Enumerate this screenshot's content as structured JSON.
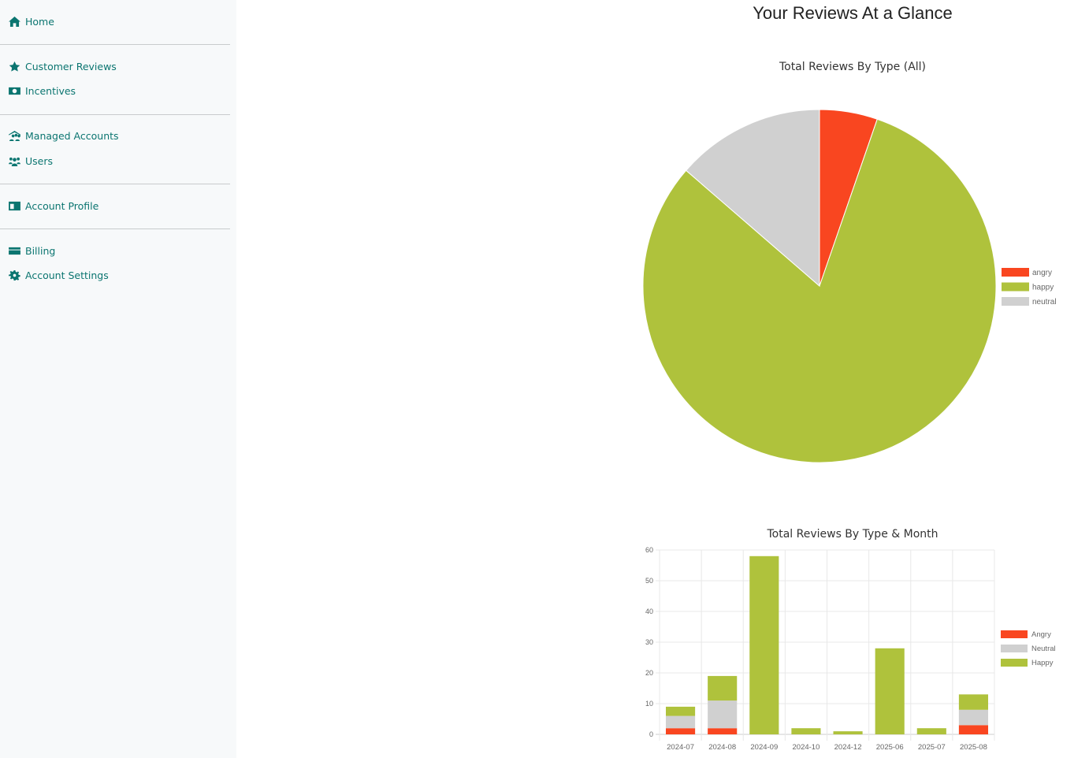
{
  "sidebar": {
    "items": [
      {
        "label": "Home",
        "icon": "home-icon"
      },
      {
        "label": "Customer Reviews",
        "icon": "star-icon"
      },
      {
        "label": "Incentives",
        "icon": "money-icon"
      },
      {
        "label": "Managed Accounts",
        "icon": "managed-accounts-icon"
      },
      {
        "label": "Users",
        "icon": "users-icon"
      },
      {
        "label": "Account Profile",
        "icon": "id-card-icon"
      },
      {
        "label": "Billing",
        "icon": "credit-card-icon"
      },
      {
        "label": "Account Settings",
        "icon": "gear-icon"
      }
    ],
    "accent": "#0b7570"
  },
  "page": {
    "title": "Your Reviews At a Glance"
  },
  "chart_data": [
    {
      "type": "pie",
      "title": "Total Reviews By Type (All)",
      "labels": [
        "angry",
        "happy",
        "neutral"
      ],
      "values": [
        7,
        107,
        18
      ],
      "colors": [
        "#f94620",
        "#afc23c",
        "#d0d0d0"
      ],
      "legend": "right"
    },
    {
      "type": "bar",
      "stacked": true,
      "title": "Total Reviews By Type & Month",
      "categories": [
        "2024-07",
        "2024-08",
        "2024-09",
        "2024-10",
        "2024-12",
        "2025-06",
        "2025-07",
        "2025-08"
      ],
      "series": [
        {
          "name": "Angry",
          "values": [
            2,
            2,
            0,
            0,
            0,
            0,
            0,
            3
          ],
          "color": "#f94620"
        },
        {
          "name": "Neutral",
          "values": [
            4,
            9,
            0,
            0,
            0,
            0,
            0,
            5
          ],
          "color": "#d0d0d0"
        },
        {
          "name": "Happy",
          "values": [
            3,
            8,
            58,
            2,
            1,
            28,
            2,
            5
          ],
          "color": "#afc23c"
        }
      ],
      "ylim": [
        0,
        60
      ],
      "yticks": [
        0,
        10,
        20,
        30,
        40,
        50,
        60
      ],
      "grid": true,
      "legend": "right"
    }
  ]
}
